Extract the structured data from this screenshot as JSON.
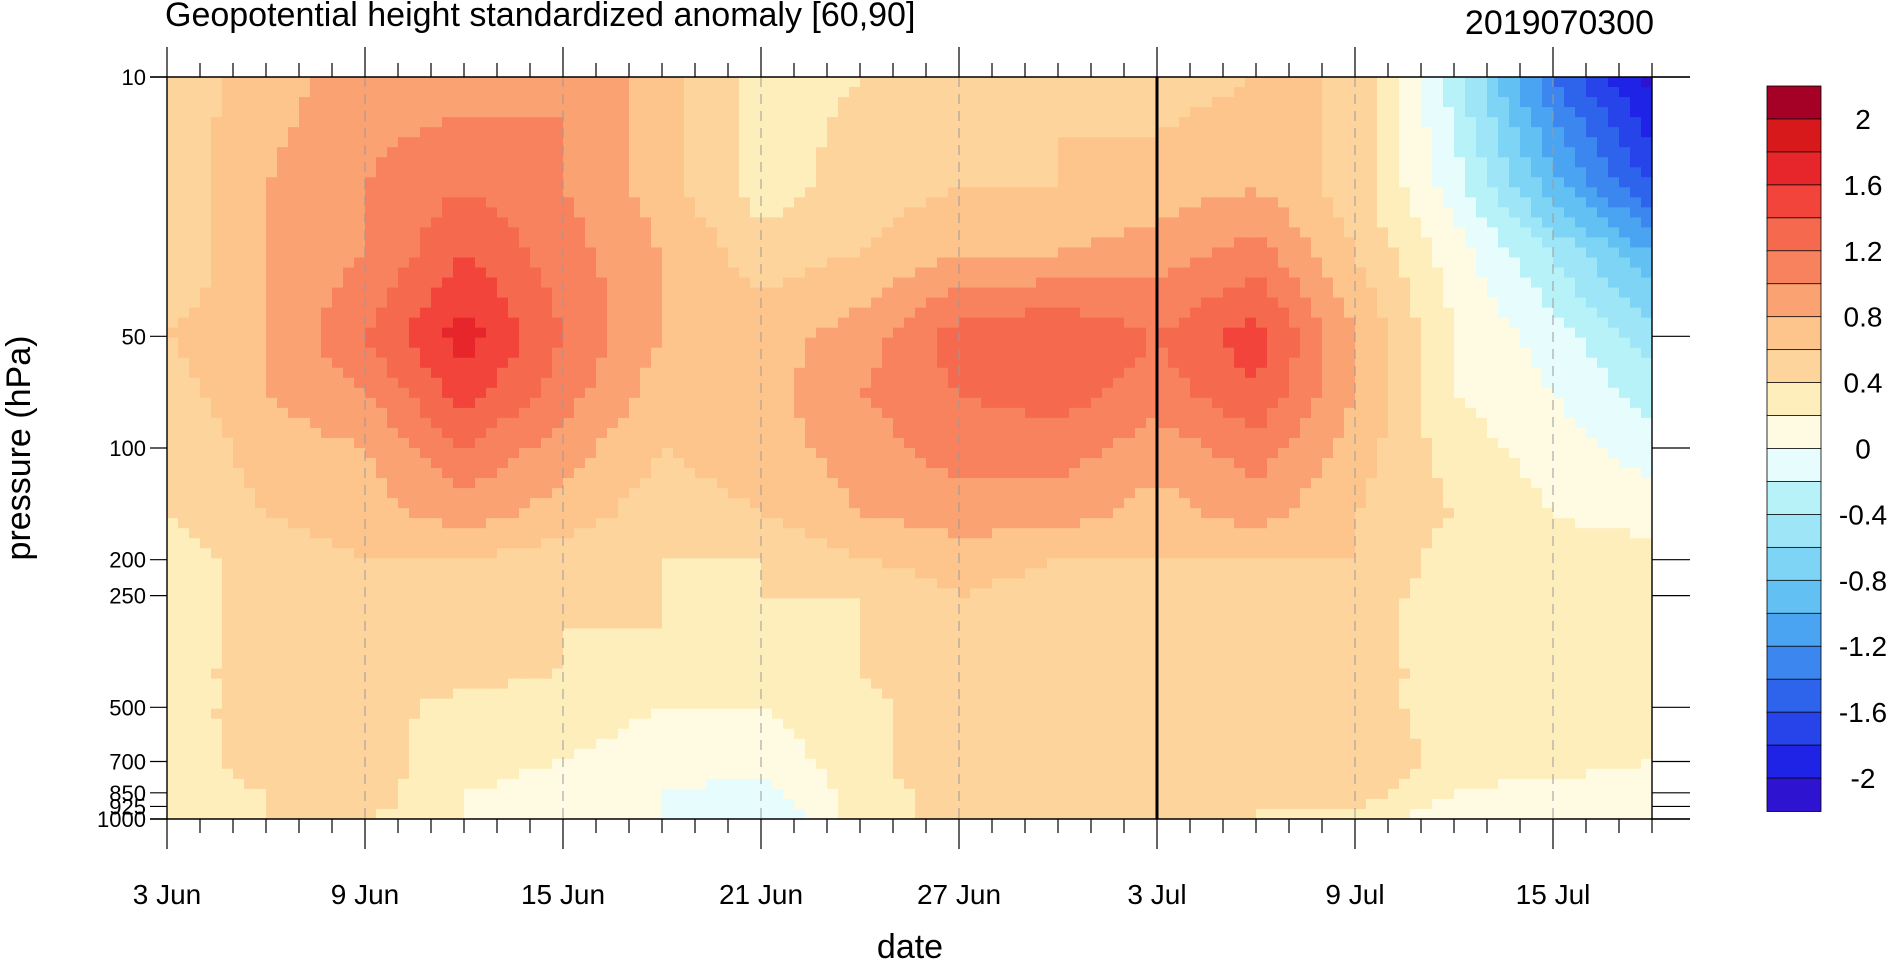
{
  "chart_data": {
    "type": "heatmap",
    "title": "Geopotential height standardized anomaly [60,90]",
    "subtitle_right": "2019070300",
    "xlabel": "date",
    "ylabel": "pressure (hPa)",
    "x_tick_labels": [
      "3 Jun",
      "9 Jun",
      "15 Jun",
      "21 Jun",
      "27 Jun",
      "3 Jul",
      "9 Jul",
      "15 Jul"
    ],
    "x_range_days_label": [
      "3 Jun",
      "18 Jul"
    ],
    "y_scale": "log",
    "y_ticks": [
      10,
      50,
      100,
      200,
      250,
      500,
      700,
      850,
      925,
      1000
    ],
    "y_tick_labels": [
      "10",
      "50",
      "100",
      "200",
      "250",
      "500",
      "700",
      "850",
      "925",
      "1000"
    ],
    "ylim": [
      1000,
      10
    ],
    "vertical_marker": "3 Jul",
    "colorbar": {
      "labels": [
        "2",
        "1.6",
        "1.2",
        "0.8",
        "0.4",
        "0",
        "-0.4",
        "-0.8",
        "-1.2",
        "-1.6",
        "-2"
      ],
      "levels": [
        2.2,
        2.0,
        1.8,
        1.6,
        1.4,
        1.2,
        1.0,
        0.8,
        0.6,
        0.4,
        0.2,
        0.0,
        -0.2,
        -0.4,
        -0.6,
        -0.8,
        -1.0,
        -1.2,
        -1.4,
        -1.6,
        -1.8,
        -2.0,
        -2.2
      ],
      "colors": [
        "#a50026",
        "#d7191c",
        "#e6262a",
        "#f2443a",
        "#f56a4f",
        "#f8825e",
        "#fba272",
        "#fdc58c",
        "#fdd49c",
        "#feeebc",
        "#fffbe3",
        "#e6fcfd",
        "#b8f2f9",
        "#9de5f7",
        "#7dd4f5",
        "#62c0f3",
        "#4aa4f2",
        "#3b86ef",
        "#2e64ec",
        "#2744ea",
        "#1f23e6",
        "#2e13d1"
      ]
    },
    "grid_rows_pressure": [
      10,
      20,
      30,
      50,
      70,
      100,
      150,
      200,
      250,
      300,
      400,
      500,
      700,
      850,
      925,
      1000
    ],
    "grid_cols_days": [
      0,
      3,
      6,
      9,
      12,
      15,
      18,
      21,
      24,
      27,
      30,
      33,
      36,
      39,
      42,
      45
    ],
    "values": [
      [
        0.5,
        0.7,
        0.9,
        0.9,
        1.0,
        0.7,
        0.3,
        0.4,
        0.5,
        0.6,
        0.5,
        0.6,
        0.6,
        -0.3,
        -1.4,
        -2.1
      ],
      [
        0.4,
        0.8,
        1.0,
        1.2,
        1.0,
        0.7,
        0.3,
        0.5,
        0.6,
        0.6,
        0.7,
        0.8,
        0.5,
        -0.1,
        -0.9,
        -1.6
      ],
      [
        0.4,
        0.8,
        1.0,
        1.4,
        1.1,
        0.8,
        0.5,
        0.6,
        0.8,
        0.8,
        0.9,
        1.1,
        0.6,
        0.1,
        -0.4,
        -1.0
      ],
      [
        0.6,
        0.8,
        1.2,
        1.7,
        1.2,
        0.8,
        0.7,
        0.9,
        1.3,
        1.4,
        1.2,
        1.5,
        0.8,
        0.2,
        -0.1,
        -0.5
      ],
      [
        0.5,
        0.8,
        1.0,
        1.5,
        1.1,
        0.7,
        0.7,
        1.0,
        1.2,
        1.3,
        1.1,
        1.4,
        0.8,
        0.2,
        0.0,
        -0.3
      ],
      [
        0.4,
        0.7,
        0.8,
        1.2,
        0.9,
        0.6,
        0.7,
        0.9,
        1.1,
        1.1,
        0.9,
        1.1,
        0.7,
        0.3,
        0.1,
        -0.1
      ],
      [
        0.4,
        0.6,
        0.7,
        0.9,
        0.7,
        0.5,
        0.6,
        0.8,
        0.9,
        0.9,
        0.7,
        0.9,
        0.6,
        0.4,
        0.2,
        0.1
      ],
      [
        0.3,
        0.5,
        0.6,
        0.6,
        0.5,
        0.4,
        0.4,
        0.6,
        0.7,
        0.6,
        0.6,
        0.6,
        0.6,
        0.3,
        0.3,
        0.3
      ],
      [
        0.3,
        0.5,
        0.5,
        0.6,
        0.5,
        0.4,
        0.4,
        0.4,
        0.6,
        0.5,
        0.5,
        0.6,
        0.5,
        0.3,
        0.3,
        0.3
      ],
      [
        0.3,
        0.5,
        0.5,
        0.5,
        0.4,
        0.4,
        0.3,
        0.4,
        0.6,
        0.4,
        0.5,
        0.6,
        0.5,
        0.3,
        0.3,
        0.3
      ],
      [
        0.3,
        0.5,
        0.6,
        0.5,
        0.4,
        0.3,
        0.3,
        0.4,
        0.6,
        0.4,
        0.6,
        0.6,
        0.5,
        0.3,
        0.3,
        0.3
      ],
      [
        0.3,
        0.5,
        0.5,
        0.3,
        0.3,
        0.2,
        0.2,
        0.3,
        0.6,
        0.4,
        0.6,
        0.6,
        0.5,
        0.3,
        0.3,
        0.3
      ],
      [
        0.3,
        0.5,
        0.5,
        0.3,
        0.2,
        0.1,
        0.1,
        0.3,
        0.6,
        0.4,
        0.6,
        0.6,
        0.6,
        0.3,
        0.3,
        0.2
      ],
      [
        0.3,
        0.4,
        0.5,
        0.2,
        0.1,
        0.0,
        -0.1,
        0.3,
        0.5,
        0.5,
        0.6,
        0.5,
        0.5,
        0.2,
        0.1,
        0.1
      ],
      [
        0.3,
        0.4,
        0.5,
        0.2,
        0.1,
        0.0,
        -0.2,
        0.3,
        0.5,
        0.5,
        0.6,
        0.4,
        0.4,
        0.1,
        0.1,
        0.0
      ],
      [
        0.3,
        0.4,
        0.4,
        0.2,
        0.1,
        0.0,
        -0.2,
        0.3,
        0.5,
        0.5,
        0.6,
        0.4,
        0.3,
        0.1,
        0.0,
        0.0
      ]
    ]
  }
}
